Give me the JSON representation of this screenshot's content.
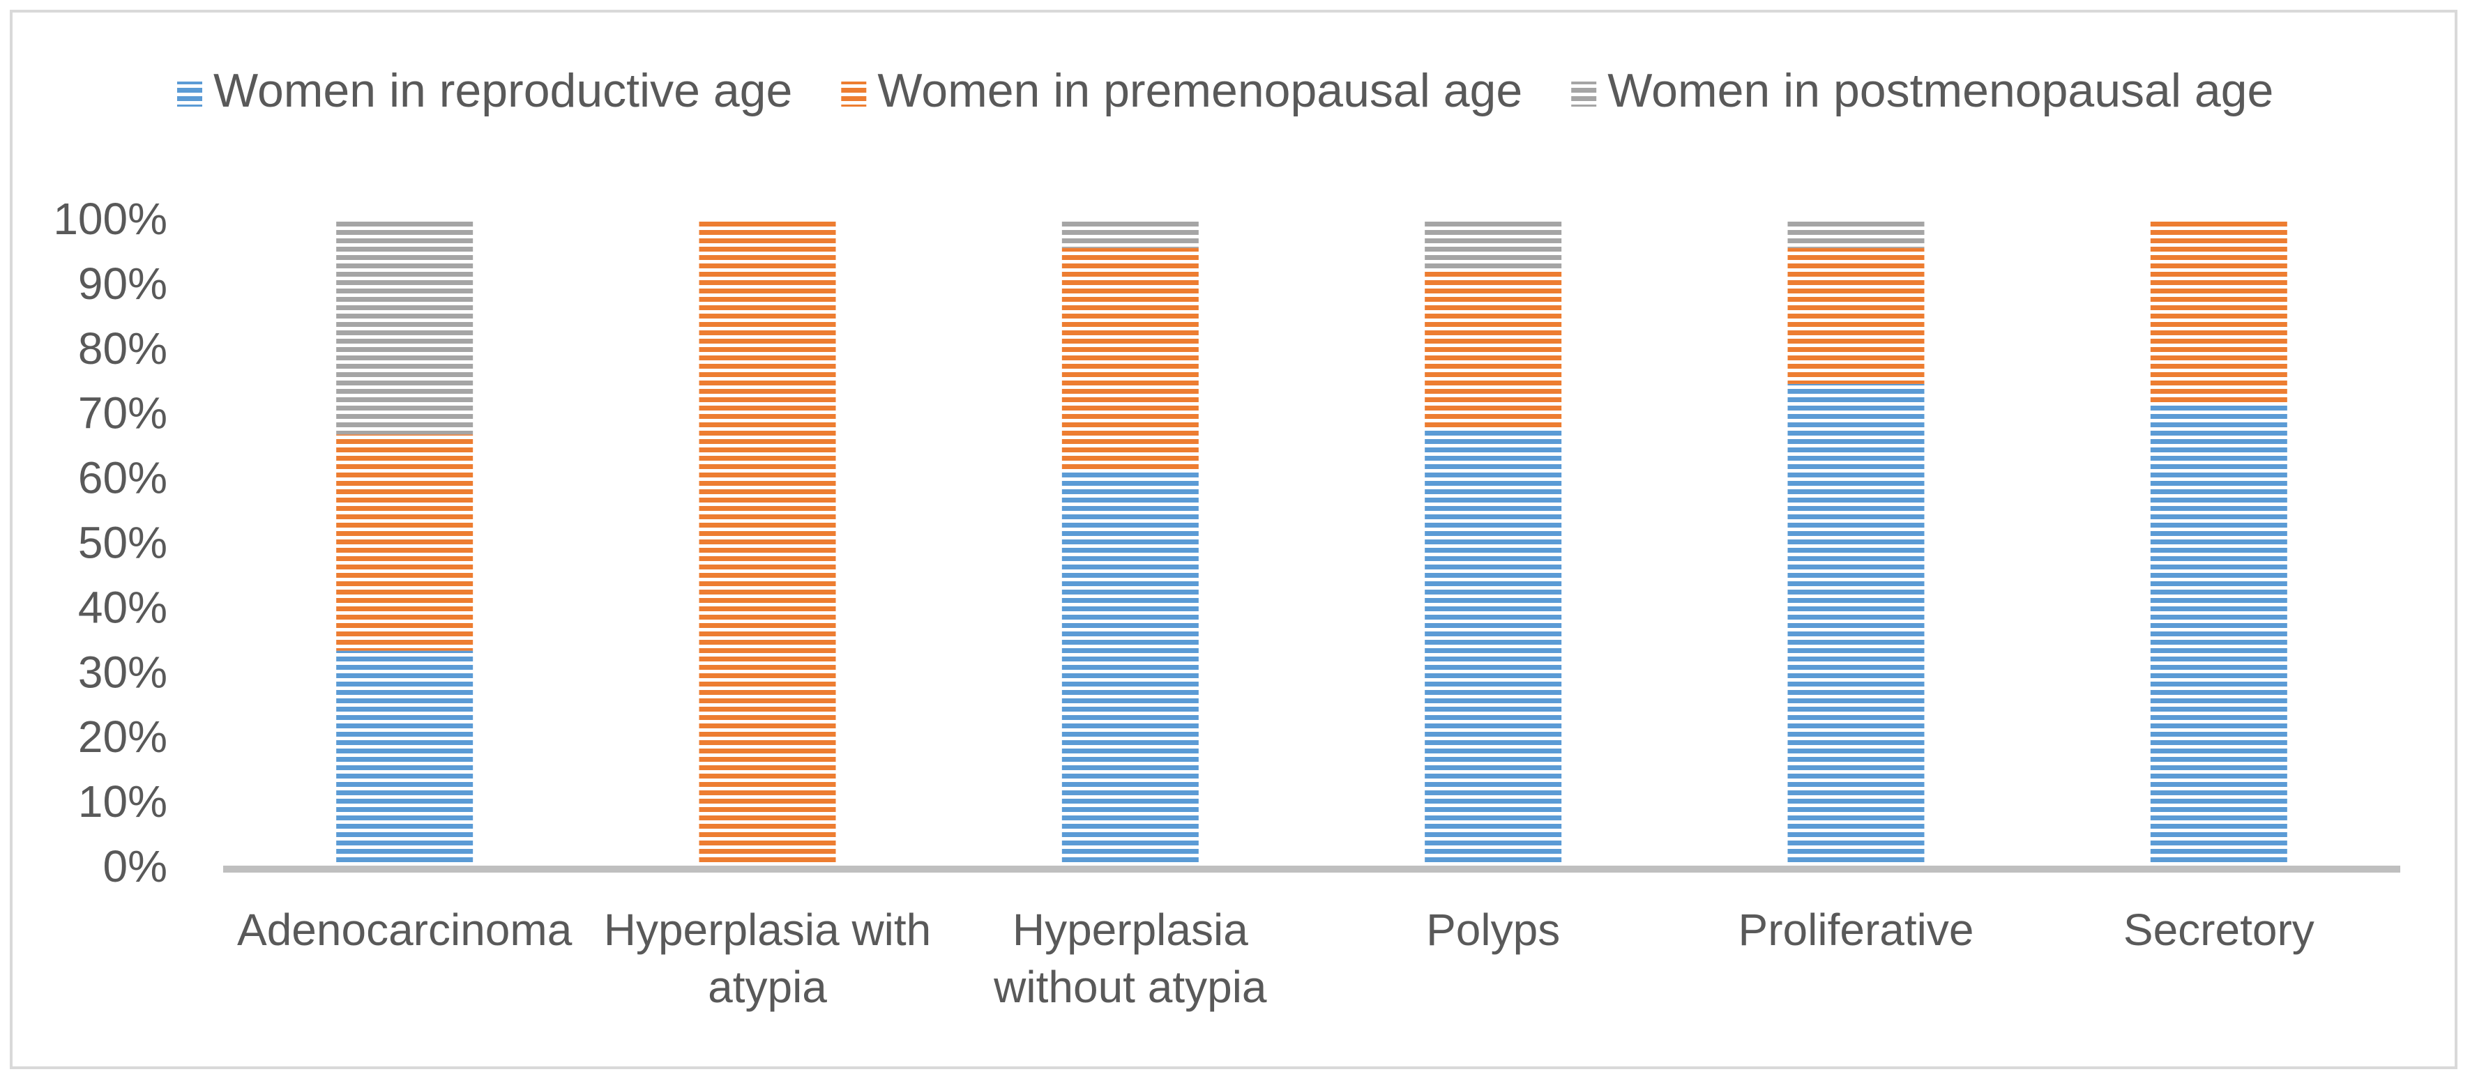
{
  "chart_data": {
    "type": "bar",
    "stacked": "percent",
    "title": "",
    "xlabel": "",
    "ylabel": "",
    "ylim": [
      0,
      100
    ],
    "y_ticks": [
      "0%",
      "10%",
      "20%",
      "30%",
      "40%",
      "50%",
      "60%",
      "70%",
      "80%",
      "90%",
      "100%"
    ],
    "grid": false,
    "legend_position": "top",
    "categories": [
      [
        "Adenocarcinoma"
      ],
      [
        "Hyperplasia with",
        "atypia"
      ],
      [
        "Hyperplasia",
        "without atypia"
      ],
      [
        "Polyps"
      ],
      [
        "Proliferative"
      ],
      [
        "Secretory"
      ]
    ],
    "series": [
      {
        "name": "Women in reproductive age",
        "color": "#5b9bd5",
        "values": [
          33.3,
          0,
          61,
          67.5,
          74.5,
          71.5
        ]
      },
      {
        "name": "Women in premenopausal age",
        "color": "#ed7d31",
        "values": [
          33.4,
          100,
          34.5,
          24.5,
          21,
          28.5
        ]
      },
      {
        "name": "Women in postmenopausal age",
        "color": "#a5a5a5",
        "values": [
          33.3,
          0,
          4.5,
          8,
          4.5,
          0
        ]
      }
    ]
  }
}
